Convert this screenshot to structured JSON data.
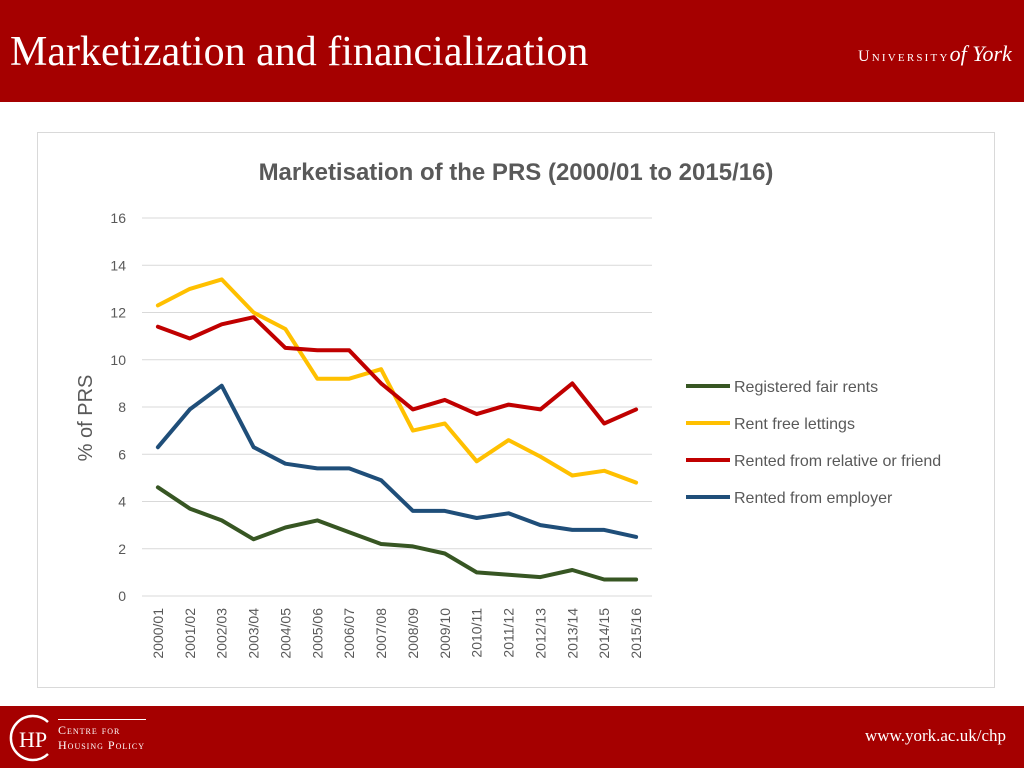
{
  "header": {
    "title": "Marketization and financialization",
    "logo_prefix": "University",
    "logo_suffix": "of York",
    "background": "#a50000"
  },
  "footer": {
    "url": "www.york.ac.uk/chp",
    "logo_mark": "HP",
    "logo_line1": "Centre for",
    "logo_line2": "Housing Policy"
  },
  "chart_data": {
    "type": "line",
    "title": "Marketisation of the PRS (2000/01 to 2015/16)",
    "xlabel": "",
    "ylabel": "% of PRS",
    "ylim": [
      0,
      16
    ],
    "yticks": [
      "0",
      "2",
      "4",
      "6",
      "8",
      "10",
      "12",
      "14",
      "16"
    ],
    "grid": true,
    "legend_position": "right",
    "categories": [
      "2000/01",
      "2001/02",
      "2002/03",
      "2003/04",
      "2004/05",
      "2005/06",
      "2006/07",
      "2007/08",
      "2008/09",
      "2009/10",
      "2010/11",
      "2011/12",
      "2012/13",
      "2013/14",
      "2014/15",
      "2015/16"
    ],
    "series": [
      {
        "name": "Registered fair rents",
        "color": "#375623",
        "values": [
          4.6,
          3.7,
          3.2,
          2.4,
          2.9,
          3.2,
          2.7,
          2.2,
          2.1,
          1.8,
          1.0,
          0.9,
          0.8,
          1.1,
          0.7,
          0.7
        ]
      },
      {
        "name": "Rent free lettings",
        "color": "#ffc000",
        "values": [
          12.3,
          13.0,
          13.4,
          12.0,
          11.3,
          9.2,
          9.2,
          9.6,
          7.0,
          7.3,
          5.7,
          6.6,
          5.9,
          5.1,
          5.3,
          4.8
        ]
      },
      {
        "name": "Rented from relative or friend",
        "color": "#c00000",
        "values": [
          11.4,
          10.9,
          11.5,
          11.8,
          10.5,
          10.4,
          10.4,
          9.0,
          7.9,
          8.3,
          7.7,
          8.1,
          7.9,
          9.0,
          7.3,
          7.9
        ]
      },
      {
        "name": "Rented from employer",
        "color": "#1f4e79",
        "values": [
          6.3,
          7.9,
          8.9,
          6.3,
          5.6,
          5.4,
          5.4,
          4.9,
          3.6,
          3.6,
          3.3,
          3.5,
          3.0,
          2.8,
          2.8,
          2.5
        ]
      }
    ]
  }
}
